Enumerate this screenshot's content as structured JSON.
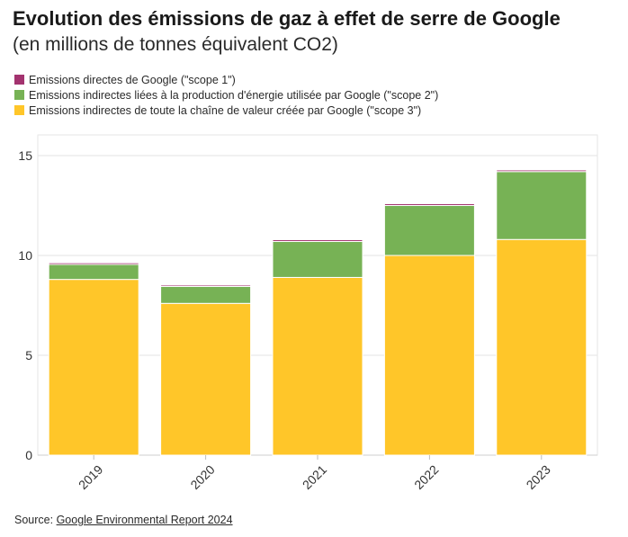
{
  "header": {
    "title": "Evolution des émissions de gaz à effet de serre de Google",
    "subtitle": "(en millions de tonnes équivalent CO2)"
  },
  "legend": [
    {
      "label": "Emissions directes de Google (\"scope 1\")",
      "color": "#a3336f"
    },
    {
      "label": "Emissions indirectes liées à la production d'énergie utilisée par Google (\"scope 2\")",
      "color": "#77b255"
    },
    {
      "label": "Emissions indirectes de toute la chaîne de valeur créée par Google (\"scope 3\")",
      "color": "#ffc629"
    }
  ],
  "footer": {
    "source_label": "Source:",
    "source_name": "Google Environmental Report 2024"
  },
  "chart_data": {
    "type": "bar",
    "stacked": true,
    "categories": [
      "2019",
      "2020",
      "2021",
      "2022",
      "2023"
    ],
    "series": [
      {
        "name": "Emissions indirectes de toute la chaîne de valeur créée par Google (\"scope 3\")",
        "color": "#ffc629",
        "values": [
          8.8,
          7.6,
          8.9,
          10.0,
          10.8
        ]
      },
      {
        "name": "Emissions indirectes liées à la production d'énergie utilisée par Google (\"scope 2\")",
        "color": "#77b255",
        "values": [
          0.75,
          0.85,
          1.8,
          2.5,
          3.4
        ]
      },
      {
        "name": "Emissions directes de Google (\"scope 1\")",
        "color": "#a3336f",
        "values": [
          0.08,
          0.07,
          0.09,
          0.09,
          0.08
        ]
      }
    ],
    "ylim": [
      0,
      15
    ],
    "yticks": [
      0,
      5,
      10,
      15
    ],
    "grid": true,
    "legend_position": "top-left"
  }
}
